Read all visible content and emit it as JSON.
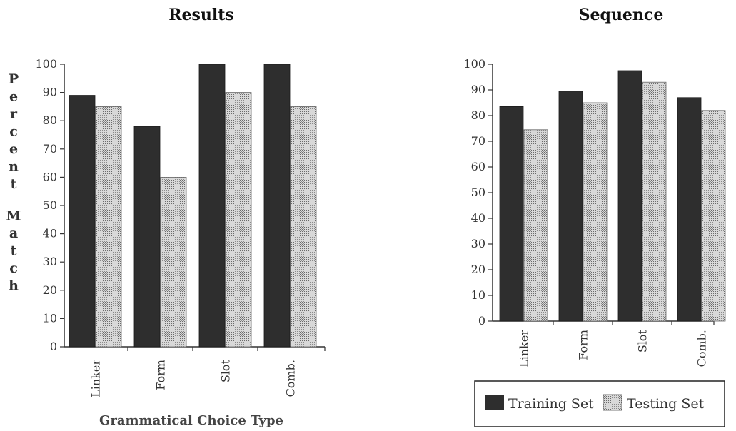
{
  "chart_data": [
    {
      "type": "bar",
      "title": "Results",
      "categories": [
        "Linker",
        "Form",
        "Slot",
        "Comb."
      ],
      "series": [
        {
          "name": "Training Set",
          "values": [
            89,
            78,
            100,
            100
          ]
        },
        {
          "name": "Testing Set",
          "values": [
            85,
            60,
            90,
            85
          ]
        }
      ],
      "ylim": [
        0,
        100
      ],
      "yticks": [
        "0",
        "10",
        "20",
        "30",
        "40",
        "50",
        "60",
        "70",
        "80",
        "90",
        "100"
      ],
      "ylabel": "Percent Match",
      "xlabel": "Grammatical Choice Type",
      "grid": false
    },
    {
      "type": "bar",
      "title": "Sequence",
      "categories": [
        "Linker",
        "Form",
        "Slot",
        "Comb."
      ],
      "series": [
        {
          "name": "Training Set",
          "values": [
            83.5,
            89.5,
            97.5,
            87
          ]
        },
        {
          "name": "Testing Set",
          "values": [
            74.5,
            85,
            93,
            82
          ]
        }
      ],
      "ylim": [
        0,
        100
      ],
      "yticks": [
        "0",
        "10",
        "20",
        "30",
        "40",
        "50",
        "60",
        "70",
        "80",
        "90",
        "100"
      ],
      "ylabel": "",
      "xlabel": "",
      "grid": false,
      "legend": {
        "placement": "bottom",
        "entries": [
          "Training Set",
          "Testing Set"
        ]
      }
    }
  ],
  "colors": {
    "training": "#2e2e2e",
    "testing": "#bdbdbd",
    "axis": "#333333"
  }
}
